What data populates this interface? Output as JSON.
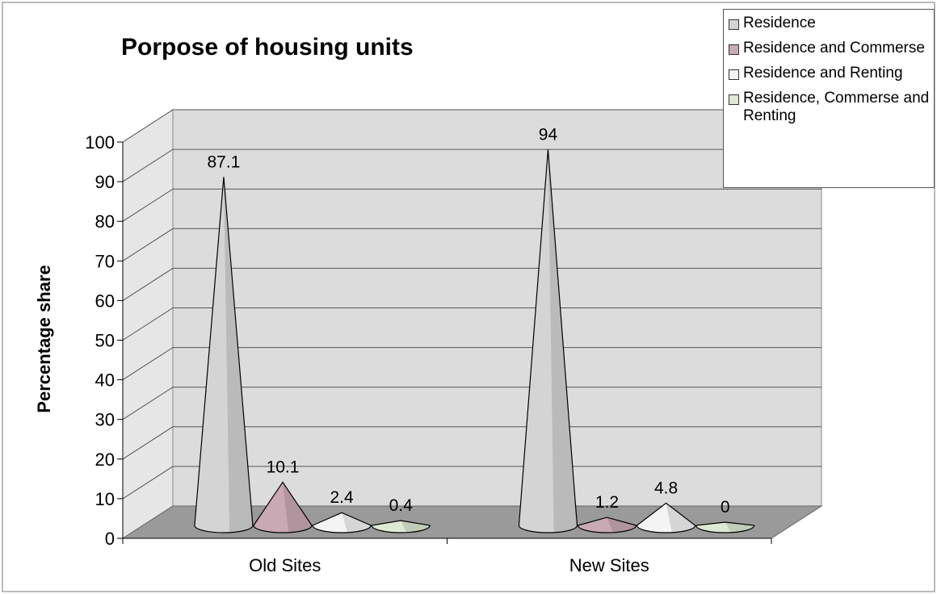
{
  "chart_data": {
    "type": "cone",
    "title": "Porpose of housing units",
    "y_label": "Percentage share",
    "categories": [
      "Old Sites",
      "New Sites"
    ],
    "series": [
      {
        "name": "Residence",
        "color": "#d4d4d4",
        "values": [
          87.1,
          94
        ]
      },
      {
        "name": "Residence and Commerse",
        "color": "#c9a9b4",
        "values": [
          10.1,
          1.2
        ]
      },
      {
        "name": "Residence and Renting",
        "color": "#f4f4f4",
        "values": [
          2.4,
          4.8
        ]
      },
      {
        "name": "Residence, Commerse and Renting",
        "color": "#dfe8d4",
        "values": [
          0.4,
          0
        ]
      }
    ],
    "ylim": [
      0,
      100
    ],
    "yticks": [
      0,
      10,
      20,
      30,
      40,
      50,
      60,
      70,
      80,
      90,
      100
    ],
    "grid": true,
    "legend": "top-right"
  }
}
